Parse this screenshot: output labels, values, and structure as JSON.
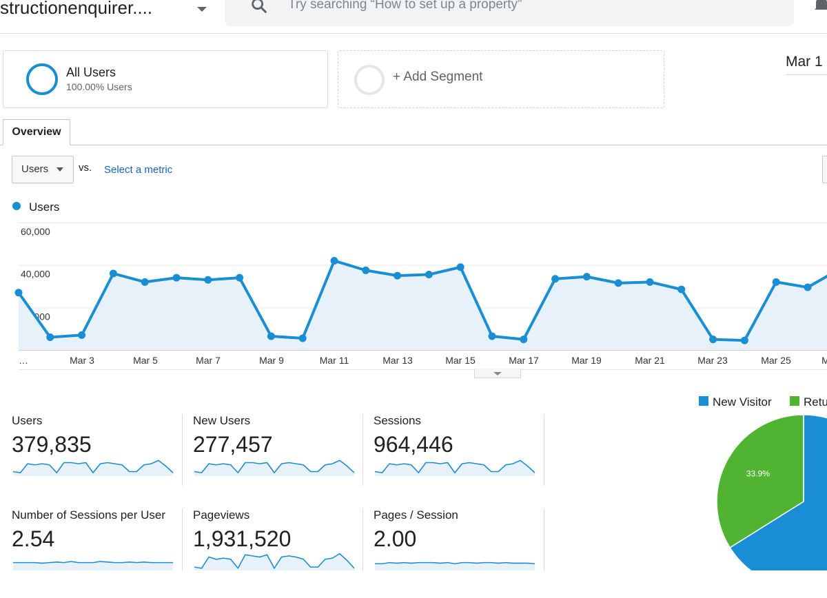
{
  "header": {
    "property_name": "structionenquirer....",
    "search_placeholder": "Try searching “How to set up a property”",
    "icons": [
      "chevron-down-icon",
      "search-icon",
      "bell-icon"
    ]
  },
  "segments": {
    "all_users": {
      "title": "All Users",
      "subtitle": "100.00% Users"
    },
    "add_segment": {
      "label": "+ Add Segment"
    },
    "date_range_fragment": "Mar 1"
  },
  "tabs": {
    "overview": "Overview"
  },
  "controls": {
    "metric_select": "Users",
    "vs_label": "vs.",
    "select_metric_link": "Select a metric"
  },
  "colors": {
    "users_line": "#1a8ed4",
    "new_visitor": "#1a8ed4",
    "returning_visitor": "#50b432",
    "link": "#1565c0"
  },
  "chart_data": {
    "type": "line",
    "legend": [
      "Users"
    ],
    "y_ticks": [
      "60,000",
      "40,000",
      "20,000"
    ],
    "x_labels": [
      "…",
      "Mar 3",
      "Mar 5",
      "Mar 7",
      "Mar 9",
      "Mar 11",
      "Mar 13",
      "Mar 15",
      "Mar 17",
      "Mar 19",
      "Mar 21",
      "Mar 23",
      "Mar 25",
      "M"
    ],
    "ylim": [
      0,
      60000
    ],
    "series": [
      {
        "name": "Users",
        "x": [
          "Mar 1",
          "Mar 2",
          "Mar 3",
          "Mar 4",
          "Mar 5",
          "Mar 6",
          "Mar 7",
          "Mar 8",
          "Mar 9",
          "Mar 10",
          "Mar 11",
          "Mar 12",
          "Mar 13",
          "Mar 14",
          "Mar 15",
          "Mar 16",
          "Mar 17",
          "Mar 18",
          "Mar 19",
          "Mar 20",
          "Mar 21",
          "Mar 22",
          "Mar 23",
          "Mar 24",
          "Mar 25",
          "Mar 26",
          "Mar 27"
        ],
        "values": [
          27000,
          6000,
          7000,
          36000,
          32000,
          34000,
          33000,
          34000,
          6500,
          5500,
          42000,
          37500,
          35000,
          35500,
          39000,
          6500,
          5000,
          33500,
          34500,
          31500,
          32000,
          28500,
          5000,
          4500,
          32000,
          29500,
          38000
        ]
      }
    ]
  },
  "metrics": [
    {
      "label": "Users",
      "value": "379,835",
      "spark": [
        4,
        3,
        11,
        10,
        11,
        10,
        3,
        12,
        12,
        11,
        12,
        3,
        11,
        12,
        11,
        10,
        4,
        4,
        10,
        11,
        14,
        9,
        3
      ]
    },
    {
      "label": "New Users",
      "value": "277,457",
      "spark": [
        4,
        3,
        11,
        10,
        11,
        10,
        3,
        12,
        12,
        11,
        12,
        3,
        11,
        12,
        11,
        10,
        4,
        4,
        10,
        11,
        14,
        9,
        3
      ]
    },
    {
      "label": "Sessions",
      "value": "964,446",
      "spark": [
        4,
        3,
        11,
        10,
        11,
        10,
        3,
        12,
        12,
        11,
        12,
        3,
        11,
        12,
        11,
        10,
        4,
        4,
        10,
        11,
        14,
        9,
        3
      ]
    },
    {
      "label": "Number of Sessions per User",
      "value": "2.54",
      "spark": [
        7,
        7,
        7,
        7,
        6.5,
        7,
        7.5,
        7,
        8,
        7,
        7,
        7,
        8,
        7.5,
        7,
        7,
        7.5,
        7,
        7.5,
        7,
        7,
        7,
        7
      ]
    },
    {
      "label": "Pageviews",
      "value": "1,931,520",
      "spark": [
        3,
        2,
        12,
        10,
        11,
        10,
        2,
        14,
        13,
        12,
        14,
        2,
        12,
        13,
        12,
        10,
        3,
        3,
        10,
        11,
        15,
        9,
        2
      ]
    },
    {
      "label": "Pages / Session",
      "value": "2.00",
      "spark": [
        6,
        6,
        7,
        6.5,
        7,
        6.5,
        7,
        7,
        7,
        6.5,
        7,
        6,
        7,
        7,
        6.5,
        7,
        7,
        6.5,
        7,
        6.5,
        6.5,
        6.5,
        6
      ]
    }
  ],
  "pie": {
    "type": "pie",
    "legend": [
      "New Visitor",
      "Retu"
    ],
    "slices": [
      {
        "name": "New Visitor",
        "value": 66.1
      },
      {
        "name": "Returning Visitor",
        "value": 33.9,
        "label": "33.9%"
      }
    ]
  }
}
